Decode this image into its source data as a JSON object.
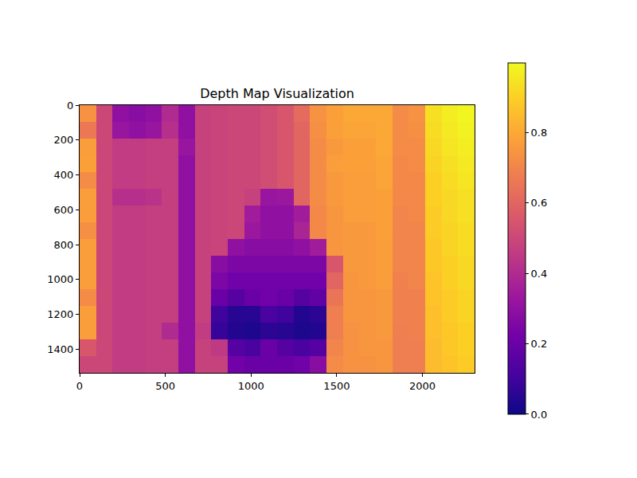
{
  "chart_data": {
    "type": "heatmap",
    "title": "Depth Map Visualization",
    "x": [
      48,
      144,
      240,
      336,
      432,
      528,
      624,
      720,
      816,
      912,
      1008,
      1104,
      1200,
      1296,
      1392,
      1488,
      1584,
      1680,
      1776,
      1872,
      1968,
      2064,
      2160,
      2256
    ],
    "y": [
      48,
      144,
      240,
      336,
      432,
      528,
      624,
      720,
      816,
      912,
      1008,
      1104,
      1200,
      1296,
      1392,
      1488
    ],
    "z": [
      [
        0.74,
        0.5,
        0.3,
        0.28,
        0.3,
        0.4,
        0.3,
        0.48,
        0.49,
        0.5,
        0.5,
        0.52,
        0.55,
        0.62,
        0.74,
        0.78,
        0.8,
        0.8,
        0.8,
        0.72,
        0.74,
        0.94,
        0.97,
        0.99
      ],
      [
        0.66,
        0.5,
        0.32,
        0.3,
        0.32,
        0.42,
        0.3,
        0.48,
        0.49,
        0.5,
        0.5,
        0.52,
        0.55,
        0.6,
        0.73,
        0.78,
        0.79,
        0.79,
        0.8,
        0.72,
        0.73,
        0.93,
        0.96,
        0.98
      ],
      [
        0.77,
        0.5,
        0.46,
        0.46,
        0.47,
        0.47,
        0.32,
        0.48,
        0.49,
        0.5,
        0.5,
        0.52,
        0.55,
        0.6,
        0.72,
        0.76,
        0.78,
        0.78,
        0.8,
        0.72,
        0.72,
        0.92,
        0.95,
        0.97
      ],
      [
        0.78,
        0.5,
        0.46,
        0.46,
        0.47,
        0.47,
        0.3,
        0.48,
        0.49,
        0.5,
        0.5,
        0.52,
        0.55,
        0.6,
        0.72,
        0.77,
        0.78,
        0.78,
        0.79,
        0.71,
        0.72,
        0.91,
        0.94,
        0.96
      ],
      [
        0.72,
        0.5,
        0.46,
        0.46,
        0.47,
        0.47,
        0.3,
        0.48,
        0.49,
        0.5,
        0.5,
        0.52,
        0.55,
        0.6,
        0.72,
        0.76,
        0.77,
        0.77,
        0.79,
        0.71,
        0.71,
        0.9,
        0.93,
        0.95
      ],
      [
        0.77,
        0.5,
        0.42,
        0.42,
        0.43,
        0.47,
        0.3,
        0.48,
        0.49,
        0.5,
        0.48,
        0.32,
        0.33,
        0.6,
        0.72,
        0.76,
        0.77,
        0.77,
        0.78,
        0.71,
        0.71,
        0.9,
        0.92,
        0.94
      ],
      [
        0.77,
        0.5,
        0.46,
        0.46,
        0.47,
        0.47,
        0.3,
        0.48,
        0.49,
        0.5,
        0.35,
        0.3,
        0.3,
        0.35,
        0.71,
        0.75,
        0.77,
        0.77,
        0.78,
        0.7,
        0.71,
        0.89,
        0.92,
        0.94
      ],
      [
        0.73,
        0.5,
        0.46,
        0.46,
        0.47,
        0.47,
        0.3,
        0.48,
        0.49,
        0.5,
        0.33,
        0.3,
        0.3,
        0.38,
        0.71,
        0.75,
        0.76,
        0.76,
        0.78,
        0.7,
        0.7,
        0.89,
        0.91,
        0.93
      ],
      [
        0.77,
        0.5,
        0.46,
        0.46,
        0.47,
        0.47,
        0.3,
        0.48,
        0.49,
        0.3,
        0.28,
        0.28,
        0.28,
        0.3,
        0.35,
        0.75,
        0.76,
        0.76,
        0.77,
        0.7,
        0.7,
        0.88,
        0.91,
        0.93
      ],
      [
        0.77,
        0.5,
        0.46,
        0.46,
        0.47,
        0.47,
        0.3,
        0.48,
        0.28,
        0.25,
        0.25,
        0.25,
        0.25,
        0.25,
        0.25,
        0.55,
        0.76,
        0.76,
        0.77,
        0.7,
        0.7,
        0.88,
        0.9,
        0.92
      ],
      [
        0.77,
        0.5,
        0.46,
        0.46,
        0.47,
        0.47,
        0.3,
        0.48,
        0.25,
        0.22,
        0.22,
        0.22,
        0.22,
        0.22,
        0.22,
        0.6,
        0.75,
        0.76,
        0.77,
        0.69,
        0.7,
        0.87,
        0.9,
        0.92
      ],
      [
        0.72,
        0.5,
        0.46,
        0.46,
        0.47,
        0.47,
        0.3,
        0.48,
        0.2,
        0.15,
        0.2,
        0.22,
        0.2,
        0.15,
        0.18,
        0.65,
        0.75,
        0.75,
        0.76,
        0.69,
        0.69,
        0.87,
        0.89,
        0.91
      ],
      [
        0.77,
        0.5,
        0.46,
        0.46,
        0.47,
        0.47,
        0.3,
        0.48,
        0.1,
        0.05,
        0.05,
        0.12,
        0.1,
        0.04,
        0.06,
        0.68,
        0.75,
        0.75,
        0.76,
        0.69,
        0.69,
        0.86,
        0.89,
        0.91
      ],
      [
        0.77,
        0.5,
        0.46,
        0.46,
        0.47,
        0.4,
        0.3,
        0.46,
        0.08,
        0.04,
        0.03,
        0.06,
        0.05,
        0.03,
        0.04,
        0.68,
        0.74,
        0.75,
        0.76,
        0.68,
        0.69,
        0.86,
        0.88,
        0.9
      ],
      [
        0.55,
        0.5,
        0.46,
        0.46,
        0.47,
        0.47,
        0.3,
        0.48,
        0.45,
        0.15,
        0.12,
        0.2,
        0.15,
        0.12,
        0.15,
        0.7,
        0.74,
        0.75,
        0.75,
        0.68,
        0.68,
        0.85,
        0.88,
        0.9
      ],
      [
        0.5,
        0.5,
        0.46,
        0.46,
        0.47,
        0.47,
        0.3,
        0.48,
        0.48,
        0.22,
        0.2,
        0.2,
        0.2,
        0.22,
        0.28,
        0.72,
        0.74,
        0.74,
        0.75,
        0.68,
        0.68,
        0.85,
        0.87,
        0.89
      ]
    ],
    "xlim": [
      0,
      2304
    ],
    "ylim": [
      1536,
      0
    ],
    "xticks": [
      0,
      500,
      1000,
      1500,
      2000
    ],
    "yticks": [
      0,
      200,
      400,
      600,
      800,
      1000,
      1200,
      1400
    ],
    "colorbar": {
      "range": [
        0,
        0.998
      ],
      "ticks": [
        {
          "value": 0,
          "label": "0.0"
        },
        0.2,
        0.4,
        0.6,
        0.8
      ]
    }
  }
}
